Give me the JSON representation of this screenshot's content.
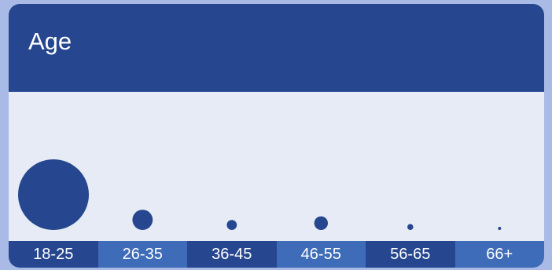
{
  "header": {
    "title": "Age"
  },
  "colors": {
    "page_background": "#a9bae6",
    "header": "#26478f",
    "chart_background": "#e7ebf5",
    "bubble": "#26478f",
    "axis_dark": "#26478f",
    "axis_light": "#3e6cb8",
    "label": "#ffffff"
  },
  "chart_data": {
    "type": "scatter",
    "title": "Age",
    "categories": [
      "18-25",
      "26-35",
      "36-45",
      "46-55",
      "56-65",
      "66+"
    ],
    "values": [
      100,
      8.2,
      2.0,
      3.7,
      0.7,
      0.2
    ],
    "encoding": "bubble area proportional to value",
    "xlabel": "",
    "ylabel": "",
    "grid": false,
    "legend": "none"
  }
}
